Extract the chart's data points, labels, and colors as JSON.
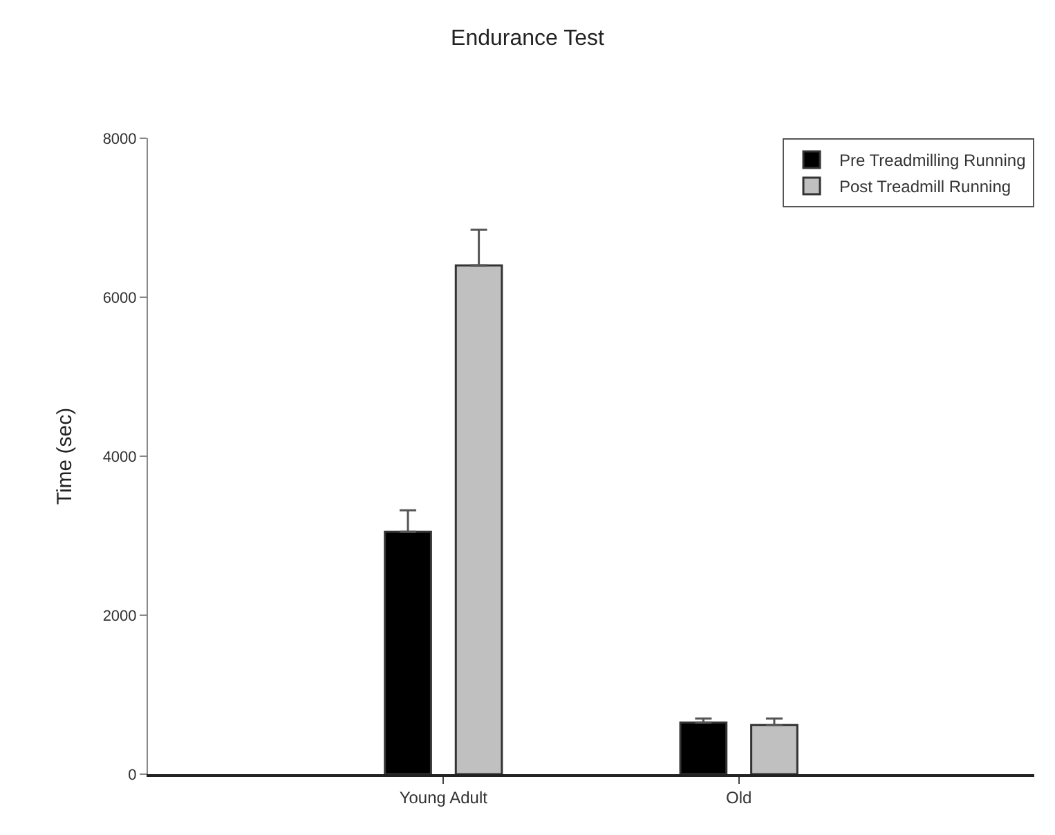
{
  "chart_data": {
    "type": "bar",
    "title": "Endurance Test",
    "ylabel": "Time (sec)",
    "categories": [
      "Young Adult",
      "Old"
    ],
    "series": [
      {
        "name": "Pre Treadmilling Running",
        "color": "#000000",
        "values": [
          3050,
          650
        ],
        "errors": [
          270,
          50
        ]
      },
      {
        "name": "Post Treadmill Running",
        "color": "#c0c0c0",
        "values": [
          6400,
          620
        ],
        "errors": [
          450,
          80
        ]
      }
    ],
    "ylim": [
      0,
      8000
    ],
    "yticks": [
      0,
      2000,
      4000,
      6000,
      8000
    ],
    "grid": false,
    "legend": "top right"
  }
}
